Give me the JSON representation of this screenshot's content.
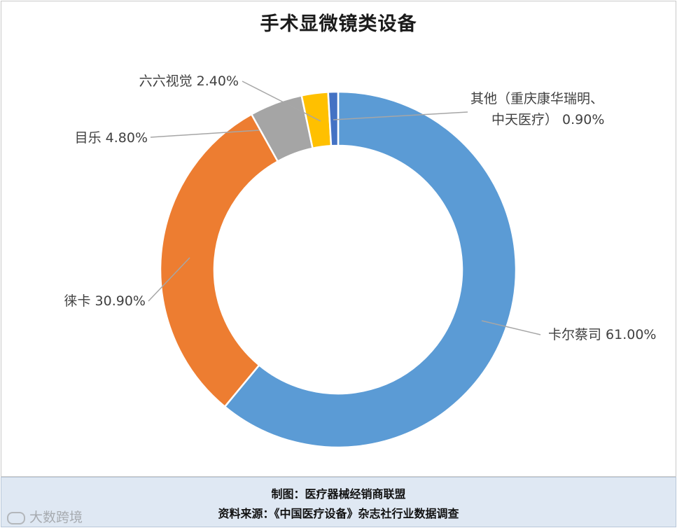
{
  "chart_data": {
    "type": "pie",
    "title": "手术显微镜类设备",
    "slices": [
      {
        "label": "卡尔蔡司 61.00%",
        "value": 61.0,
        "color": "#5B9BD5"
      },
      {
        "label": "徕卡 30.90%",
        "value": 30.9,
        "color": "#ED7D31"
      },
      {
        "label": "目乐 4.80%",
        "value": 4.8,
        "color": "#A5A5A5"
      },
      {
        "label": "六六视觉 2.40%",
        "value": 2.4,
        "color": "#FFC000"
      },
      {
        "label_lines": [
          "其他（重庆康华瑞明、",
          "中天医疗） 0.90%"
        ],
        "value": 0.9,
        "color": "#4472C4"
      }
    ]
  },
  "footer": {
    "line1": "制图：医疗器械经销商联盟",
    "line2": "资料来源：《中国医疗设备》杂志社行业数据调查"
  },
  "watermark": "大数跨境"
}
